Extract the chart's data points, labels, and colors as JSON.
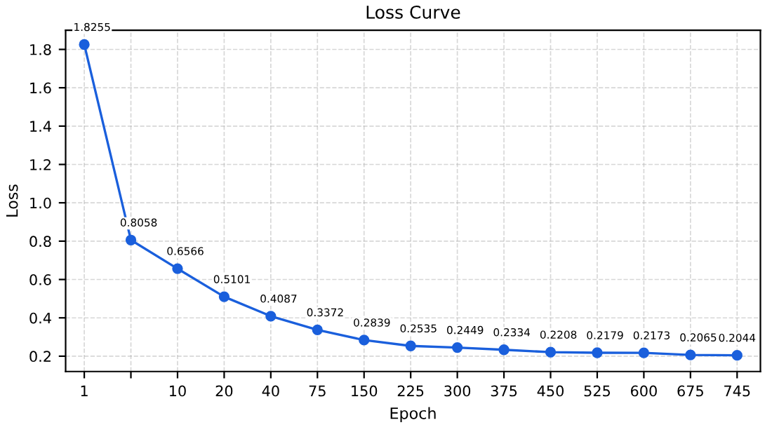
{
  "chart_data": {
    "type": "line",
    "title": "Loss Curve",
    "xlabel": "Epoch",
    "ylabel": "Loss",
    "categories": [
      "1",
      null,
      "10",
      "20",
      "40",
      "75",
      "150",
      "225",
      "300",
      "375",
      "450",
      "525",
      "600",
      "675",
      "745"
    ],
    "series": [
      {
        "color": "#1a5fdc",
        "values": [
          1.8255,
          0.8058,
          0.6566,
          0.5101,
          0.4087,
          0.3372,
          0.2839,
          0.2535,
          0.2449,
          0.2334,
          0.2208,
          0.2179,
          0.2173,
          0.2065,
          0.2044
        ]
      }
    ],
    "ylim": [
      0.12,
      1.9
    ],
    "yticks": [
      0.2,
      0.4,
      0.6,
      0.8,
      {
        "value": 1,
        "label": "1.0"
      },
      1.2,
      1.4,
      1.6,
      1.8
    ],
    "grid": true,
    "marker": "circle",
    "line_style": "solid",
    "data_labels": true
  }
}
